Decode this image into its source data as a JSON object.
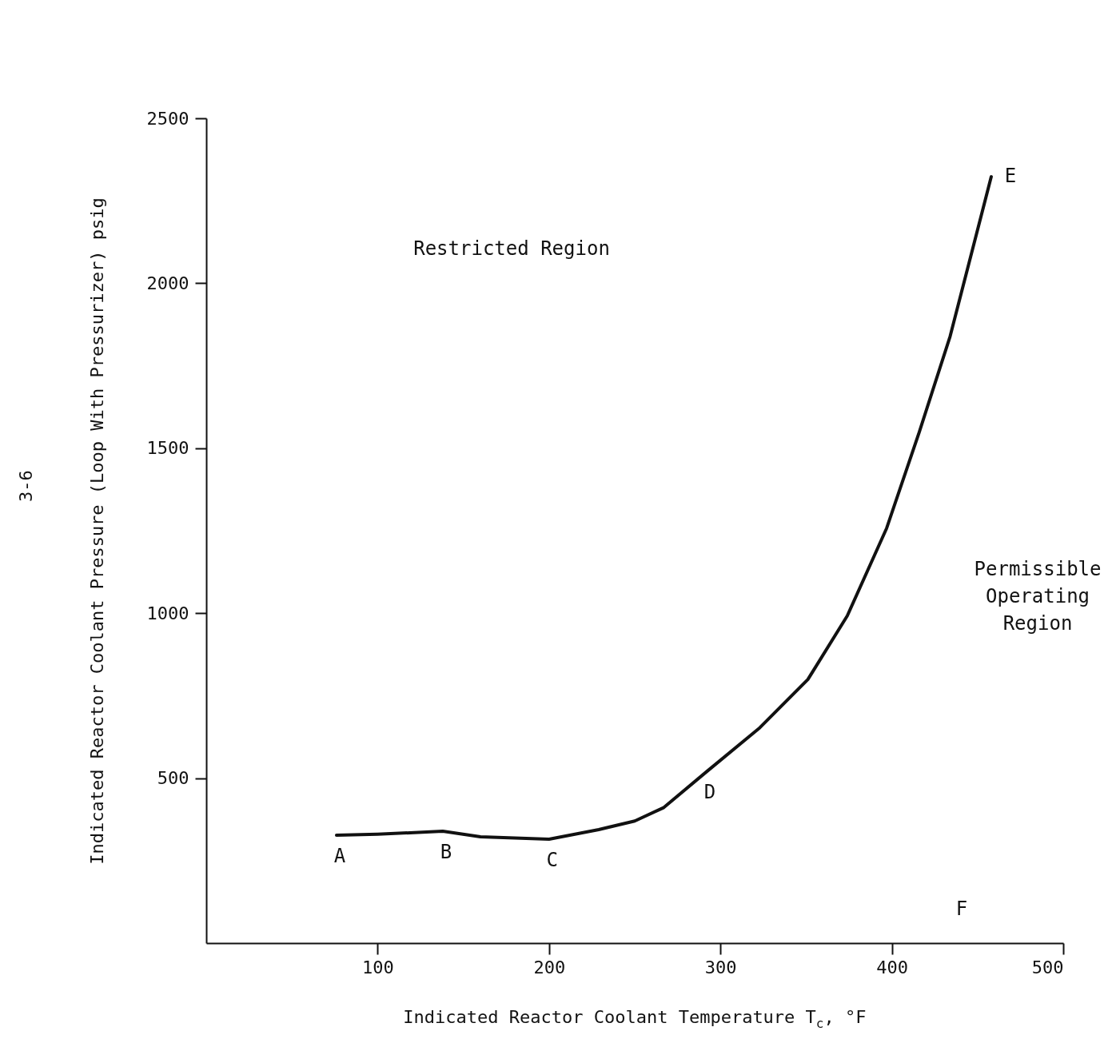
{
  "chart_data": {
    "type": "line",
    "xlabel": "Indicated Reactor Coolant Temperature T$_{c}$, °F",
    "ylabel": "Indicated Reactor Coolant Pressure (Loop With Pressurizer) psig",
    "series": [
      {
        "color": "#111111",
        "x": [
          76,
          100,
          138,
          160,
          200,
          229,
          250,
          267,
          292,
          323,
          351,
          374,
          397,
          416,
          434,
          458
        ],
        "values": [
          327,
          330,
          339,
          322,
          315,
          344,
          370,
          411,
          520,
          653,
          799,
          992,
          1258,
          1549,
          1839,
          2323
        ]
      }
    ],
    "xlim": [
      0,
      500
    ],
    "ylim": [
      0,
      2500
    ],
    "xticks": [
      100,
      200,
      300,
      400,
      500
    ],
    "yticks": [
      500,
      1000,
      1500,
      2000,
      2500
    ],
    "grid": false,
    "marker": "none",
    "line_style": "solid",
    "annotations": [
      {
        "text": "A",
        "x": 76,
        "y": 327
      },
      {
        "text": "B",
        "x": 138,
        "y": 339
      },
      {
        "text": "C",
        "x": 200,
        "y": 315
      },
      {
        "text": "D",
        "x": 292,
        "y": 520
      },
      {
        "text": "E",
        "x": 458,
        "y": 2323
      },
      "F",
      "Restricted Region",
      "Permissible\nOperating\nRegion",
      "3-6"
    ]
  }
}
